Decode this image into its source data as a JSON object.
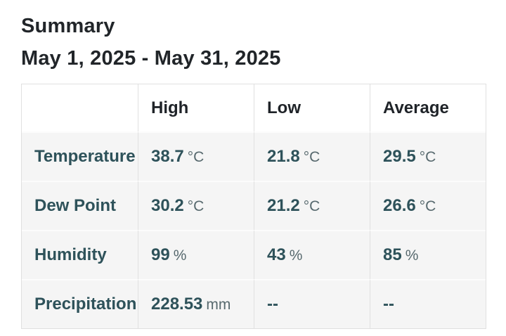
{
  "header": {
    "title": "Summary",
    "date_range": "May 1, 2025 - May 31, 2025"
  },
  "table": {
    "columns": [
      "High",
      "Low",
      "Average"
    ],
    "rows": [
      {
        "label": "Temperature",
        "cells": [
          {
            "value": "38.7",
            "unit": "°C"
          },
          {
            "value": "21.8",
            "unit": "°C"
          },
          {
            "value": "29.5",
            "unit": "°C"
          }
        ]
      },
      {
        "label": "Dew Point",
        "cells": [
          {
            "value": "30.2",
            "unit": "°C"
          },
          {
            "value": "21.2",
            "unit": "°C"
          },
          {
            "value": "26.6",
            "unit": "°C"
          }
        ]
      },
      {
        "label": "Humidity",
        "cells": [
          {
            "value": "99",
            "unit": "%"
          },
          {
            "value": "43",
            "unit": "%"
          },
          {
            "value": "85",
            "unit": "%"
          }
        ]
      },
      {
        "label": "Precipitation",
        "cells": [
          {
            "value": "228.53",
            "unit": "mm"
          },
          {
            "value": "--",
            "unit": ""
          },
          {
            "value": "--",
            "unit": ""
          }
        ]
      }
    ]
  },
  "colors": {
    "title_text": "#212529",
    "header_text": "#1f2328",
    "label_and_value_text": "#2e525a",
    "unit_text": "#57696e",
    "row_background": "#f5f5f5",
    "header_background": "#ffffff",
    "border": "#e0e0e0"
  }
}
